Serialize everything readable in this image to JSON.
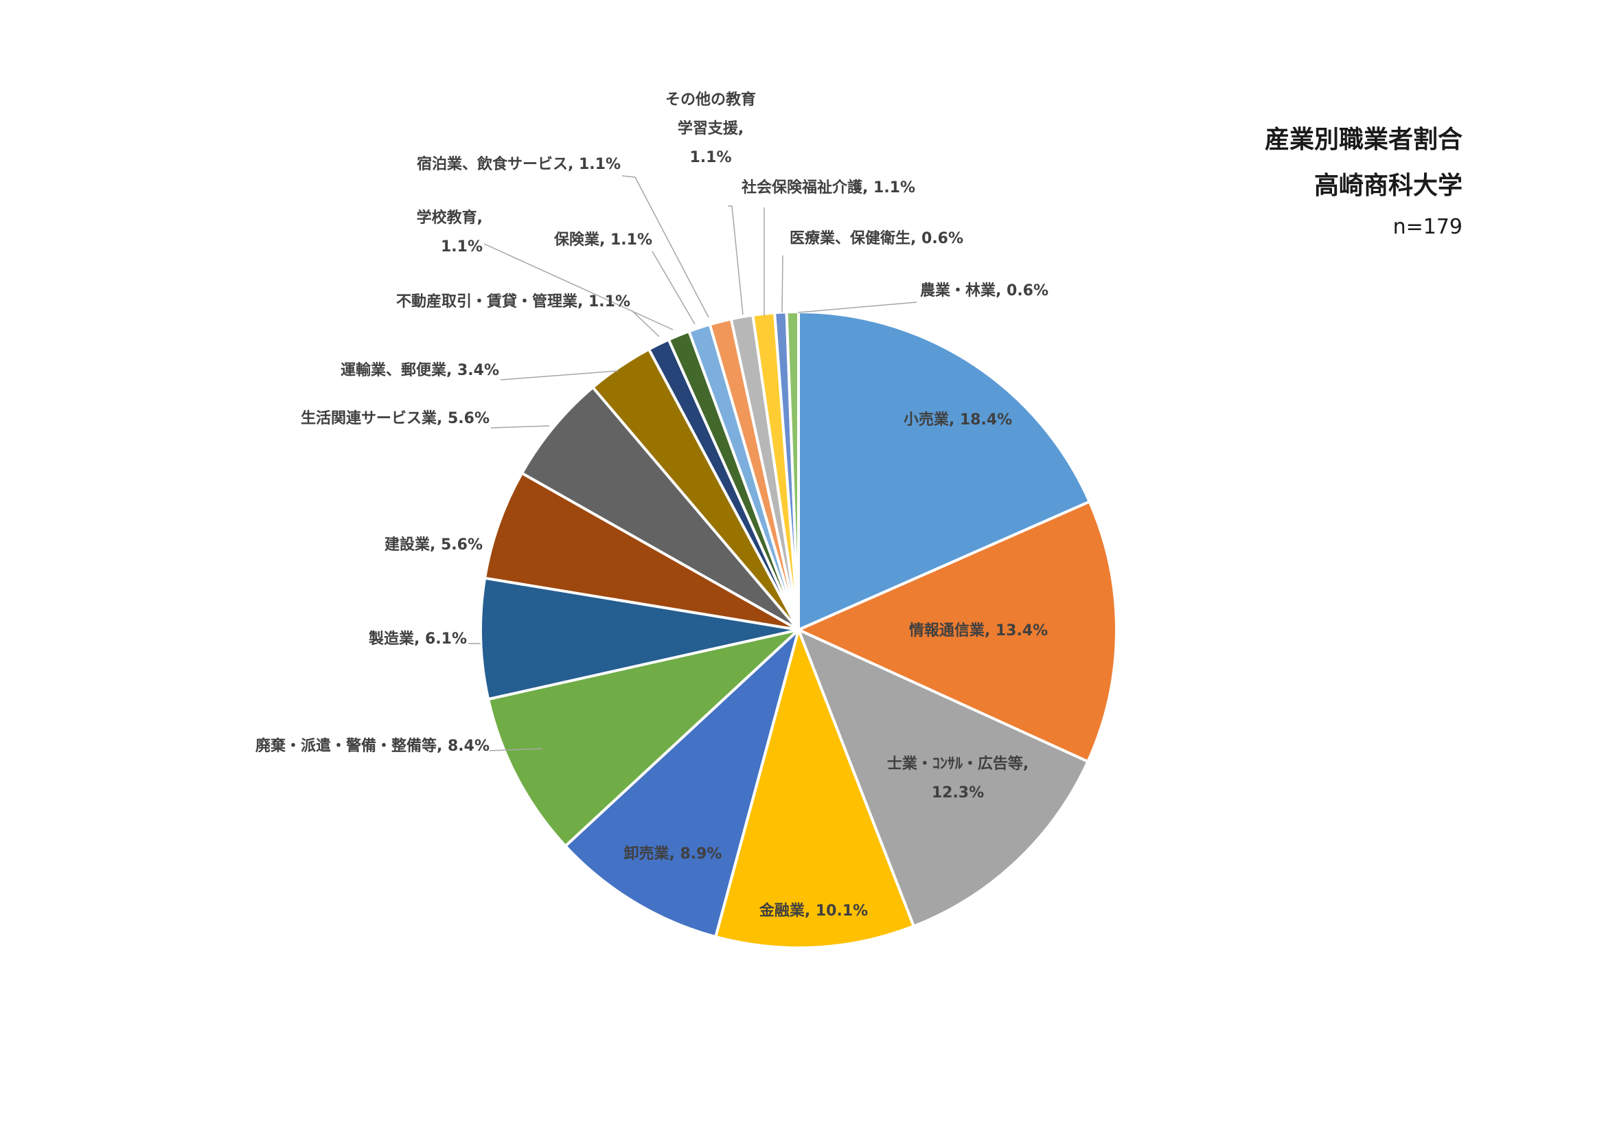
{
  "chart_data": {
    "type": "pie",
    "title": "産業別職業者割合",
    "subtitle": "高崎商科大学",
    "note": "n=179",
    "slices": [
      {
        "name": "小売業",
        "value": 18.4,
        "label": "小売業, 18.4%",
        "color": "#5B9BD5"
      },
      {
        "name": "情報通信業",
        "value": 13.4,
        "label": "情報通信業, 13.4%",
        "color": "#ED7D31"
      },
      {
        "name": "士業・ｺﾝｻﾙ・広告等",
        "value": 12.3,
        "label": "士業・ｺﾝｻﾙ・広告等,|12.3%",
        "color": "#A5A5A5"
      },
      {
        "name": "金融業",
        "value": 10.1,
        "label": "金融業, 10.1%",
        "color": "#FFC000"
      },
      {
        "name": "卸売業",
        "value": 8.9,
        "label": "卸売業, 8.9%",
        "color": "#4472C4"
      },
      {
        "name": "廃棄・派遣・警備・整備等",
        "value": 8.4,
        "label": "廃棄・派遣・警備・整備等, 8.4%",
        "color": "#70AD47"
      },
      {
        "name": "製造業",
        "value": 6.1,
        "label": "製造業, 6.1%",
        "color": "#255E91"
      },
      {
        "name": "建設業",
        "value": 5.6,
        "label": "建設業, 5.6%",
        "color": "#9E480E"
      },
      {
        "name": "生活関連サービス業",
        "value": 5.6,
        "label": "生活関連サービス業, 5.6%",
        "color": "#636363"
      },
      {
        "name": "運輸業、郵便業",
        "value": 3.4,
        "label": "運輸業、郵便業, 3.4%",
        "color": "#997300"
      },
      {
        "name": "不動産取引・賃貸・管理業",
        "value": 1.1,
        "label": "不動産取引・賃貸・管理業, 1.1%",
        "color": "#264478"
      },
      {
        "name": "学校教育",
        "value": 1.1,
        "label": "学校教育,|1.1%",
        "color": "#43682B"
      },
      {
        "name": "保険業",
        "value": 1.1,
        "label": "保険業, 1.1%",
        "color": "#7CAFDD"
      },
      {
        "name": "宿泊業、飲食サービス",
        "value": 1.1,
        "label": "宿泊業、飲食サービス, 1.1%",
        "color": "#F1975A"
      },
      {
        "name": "その他の教育学習支援",
        "value": 1.1,
        "label": "その他の教育|学習支援,|1.1%",
        "color": "#B7B7B7"
      },
      {
        "name": "社会保険福祉介護",
        "value": 1.1,
        "label": "社会保険福祉介護, 1.1%",
        "color": "#FFCD33"
      },
      {
        "name": "医療業、保健衛生",
        "value": 0.6,
        "label": "医療業、保健衛生, 0.6%",
        "color": "#698ED0"
      },
      {
        "name": "農業・林業",
        "value": 0.6,
        "label": "農業・林業, 0.6%",
        "color": "#8CC168"
      }
    ]
  }
}
